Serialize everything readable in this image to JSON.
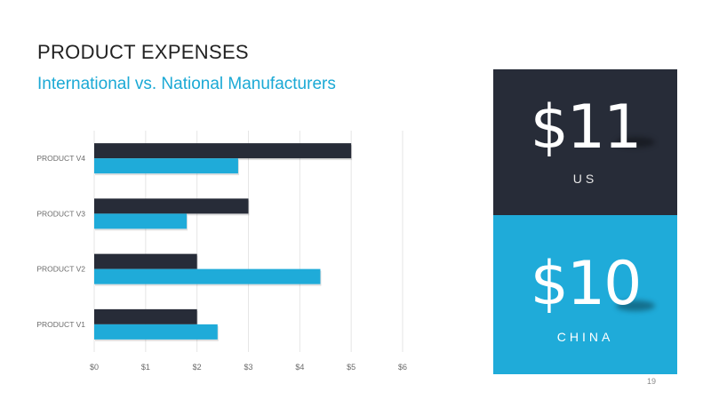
{
  "slide": {
    "title": "PRODUCT EXPENSES",
    "subtitle": "International vs. National Manufacturers",
    "page_number": "19"
  },
  "colors": {
    "dark": "#272c38",
    "accent": "#1fabd9",
    "grid": "#e6e6e6",
    "tick_text": "#6b6b6b"
  },
  "chart_data": {
    "type": "bar",
    "orientation": "horizontal",
    "categories": [
      "PRODUCT V1",
      "PRODUCT V2",
      "PRODUCT V3",
      "PRODUCT V4"
    ],
    "series": [
      {
        "color": "#272c38",
        "values": [
          2,
          2,
          3,
          5
        ]
      },
      {
        "color": "#1fabd9",
        "values": [
          2.4,
          4.4,
          1.8,
          2.8
        ]
      }
    ],
    "x_ticks": [
      "$0",
      "$1",
      "$2",
      "$3",
      "$4",
      "$5",
      "$6"
    ],
    "xlim": [
      0,
      6
    ],
    "grid": "vertical",
    "legend": "none"
  },
  "panels": {
    "top": {
      "value": "$11",
      "label": "US"
    },
    "bottom": {
      "value": "$10",
      "label": "CHINA"
    }
  }
}
